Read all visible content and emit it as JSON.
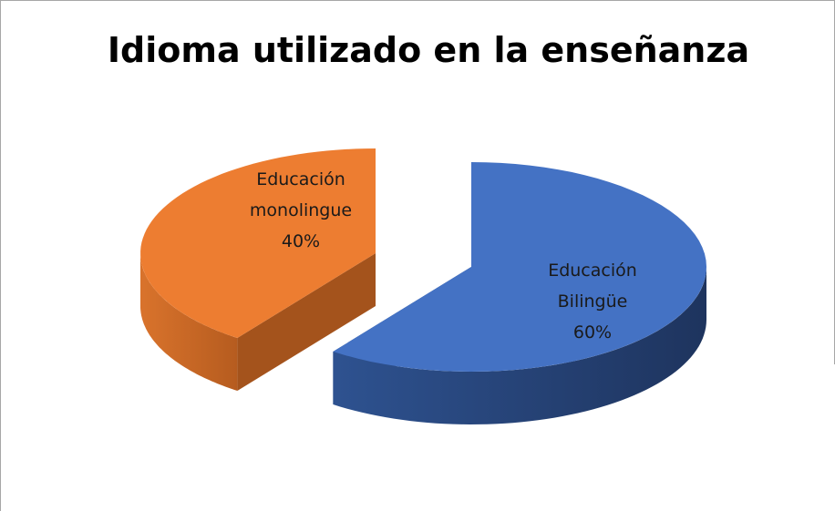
{
  "chart_data": {
    "type": "pie",
    "title": "Idioma utilizado en la enseñanza",
    "categories": [
      "Educación Bilingüe",
      "Educación monolingue"
    ],
    "values": [
      60,
      40
    ],
    "value_labels": [
      "60%",
      "40%"
    ],
    "colors": [
      "#4472c4",
      "#ed7d31"
    ]
  }
}
